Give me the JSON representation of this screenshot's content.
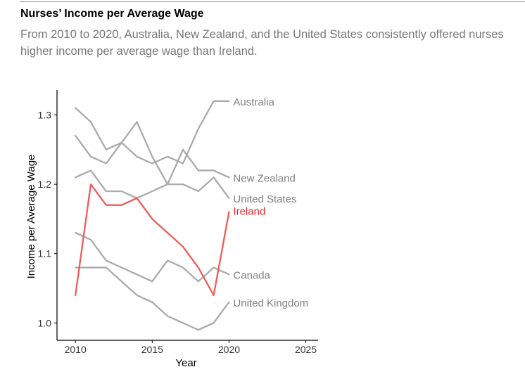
{
  "header": {
    "title": "Nurses’ Income per Average Wage",
    "subtitle": "From 2010 to 2020, Australia, New Zealand, and the United States consistently offered nurses higher income per average wage than Ireland."
  },
  "chart_data": {
    "type": "line",
    "title": "Nurses’ Income per Average Wage",
    "subtitle": "From 2010 to 2020, Australia, New Zealand, and the United States consistently offered nurses higher income per average wage than Ireland.",
    "xlabel": "Year",
    "ylabel": "Income per Average Wage",
    "xlim": [
      2008.8,
      2025.8
    ],
    "ylim": [
      0.975,
      1.336
    ],
    "xticks": [
      2010,
      2015,
      2020,
      2025
    ],
    "yticks": [
      1.0,
      1.1,
      1.2,
      1.3
    ],
    "xtick_labels": [
      "2010",
      "2015",
      "2020",
      "2025"
    ],
    "ytick_labels": [
      "1.0",
      "1.1",
      "1.2",
      "1.3"
    ],
    "grid": false,
    "legend": "direct labels at line ends",
    "colors": {
      "highlight": "#ef5a5a",
      "muted": "#aaaaaa",
      "muted_label": "#808080",
      "highlight_label": "#e8262c"
    },
    "x": [
      2010,
      2011,
      2012,
      2013,
      2014,
      2015,
      2016,
      2017,
      2018,
      2019,
      2020
    ],
    "series": [
      {
        "name": "Australia",
        "highlight": false,
        "values": [
          1.27,
          1.24,
          1.23,
          1.26,
          1.24,
          1.23,
          1.24,
          1.23,
          1.28,
          1.32,
          1.32
        ]
      },
      {
        "name": "New Zealand",
        "highlight": false,
        "values": [
          1.31,
          1.29,
          1.25,
          1.26,
          1.29,
          1.24,
          1.2,
          1.25,
          1.22,
          1.22,
          1.21
        ]
      },
      {
        "name": "United States",
        "highlight": false,
        "values": [
          1.21,
          1.22,
          1.19,
          1.19,
          1.18,
          1.19,
          1.2,
          1.2,
          1.19,
          1.21,
          1.18
        ]
      },
      {
        "name": "Ireland",
        "highlight": true,
        "values": [
          1.04,
          1.2,
          1.17,
          1.17,
          1.18,
          1.15,
          1.13,
          1.11,
          1.08,
          1.04,
          1.16
        ]
      },
      {
        "name": "Canada",
        "highlight": false,
        "values": [
          1.13,
          1.12,
          1.09,
          1.08,
          1.07,
          1.06,
          1.09,
          1.08,
          1.06,
          1.08,
          1.07
        ]
      },
      {
        "name": "United Kingdom",
        "highlight": false,
        "values": [
          1.08,
          1.08,
          1.08,
          1.06,
          1.04,
          1.03,
          1.01,
          1.0,
          0.99,
          1.0,
          1.03
        ]
      }
    ]
  }
}
